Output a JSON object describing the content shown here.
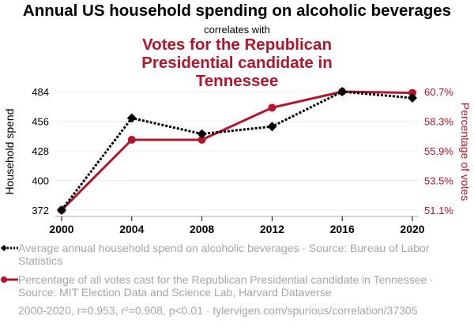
{
  "header": {
    "title": "Annual US household spending on alcoholic beverages",
    "connector": "correlates with",
    "subtitle": "Votes for the Republican Presidential candidate in Tennessee"
  },
  "chart_data": {
    "type": "line",
    "x": [
      2000,
      2004,
      2008,
      2012,
      2016,
      2020
    ],
    "xlabel": "",
    "grid": true,
    "series": [
      {
        "name": "Average annual household spend on alcoholic beverages",
        "axis": "left",
        "color": "#000000",
        "style": "dotted",
        "marker": "diamond",
        "values": [
          372,
          459,
          444,
          451,
          484,
          478
        ]
      },
      {
        "name": "Percentage of all votes cast for the Republican Presidential candidate in Tennessee",
        "axis": "right",
        "color": "#b5152b",
        "style": "solid",
        "marker": "circle",
        "values": [
          51.1,
          56.8,
          56.8,
          59.4,
          60.7,
          60.6
        ]
      }
    ],
    "left_axis": {
      "label": "Household spend",
      "ylim": [
        372,
        484
      ],
      "ticks": [
        372,
        400,
        428,
        456,
        484
      ],
      "tick_labels": [
        "372",
        "400",
        "428",
        "456",
        "484"
      ]
    },
    "right_axis": {
      "label": "Percentage of votes",
      "ylim": [
        51.1,
        60.7
      ],
      "ticks": [
        51.1,
        53.5,
        55.9,
        58.3,
        60.7
      ],
      "tick_labels": [
        "51.1%",
        "53.5%",
        "55.9%",
        "58.3%",
        "60.7%"
      ]
    },
    "x_tick_labels": [
      "2000",
      "2004",
      "2008",
      "2012",
      "2016",
      "2020"
    ],
    "legend_position": "bottom"
  },
  "legend": {
    "item1": "Average annual household spend on alcoholic beverages · Source: Bureau of Labor Statistics",
    "item2": "Percentage of all votes cast for the Republican Presidential candidate in Tennessee · Source: MIT Election Data and Science Lab, Harvard Dataverse"
  },
  "footer": "2000-2020, r=0.953, r²=0.908, p<0.01 · tylervigen.com/spurious/correlation/37305"
}
